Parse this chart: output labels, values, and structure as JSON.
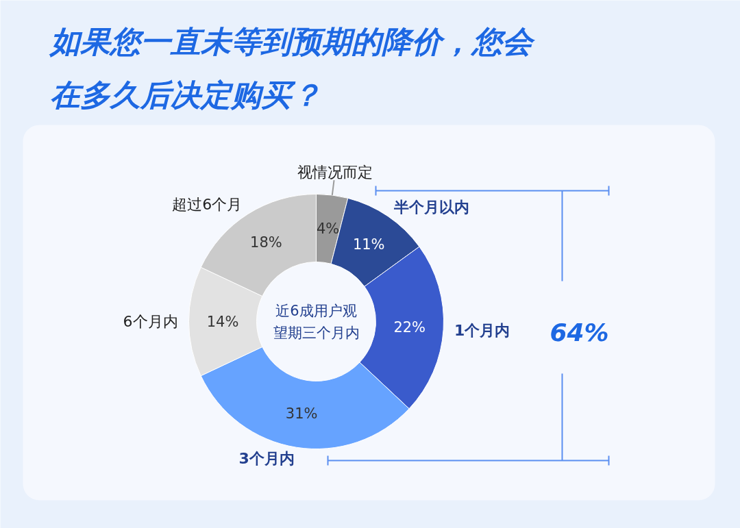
{
  "chart_data": {
    "type": "donut",
    "title": "如果您一直未等到预期的降价，您会在多久后决定购买？",
    "categories": [
      "视情况而定",
      "半个月以内",
      "1个月内",
      "3个月内",
      "6个月内",
      "超过6个月"
    ],
    "values": [
      4,
      11,
      22,
      31,
      14,
      18
    ],
    "colors": [
      "#9a9a9a",
      "#2b4a96",
      "#3a5bcc",
      "#66a3ff",
      "#e2e2e2",
      "#cbcbcb"
    ],
    "value_labels": [
      "4%",
      "11%",
      "22%",
      "31%",
      "14%",
      "18%"
    ],
    "annotations": [
      "近6成用户观望期三个月内",
      "64%"
    ]
  }
}
